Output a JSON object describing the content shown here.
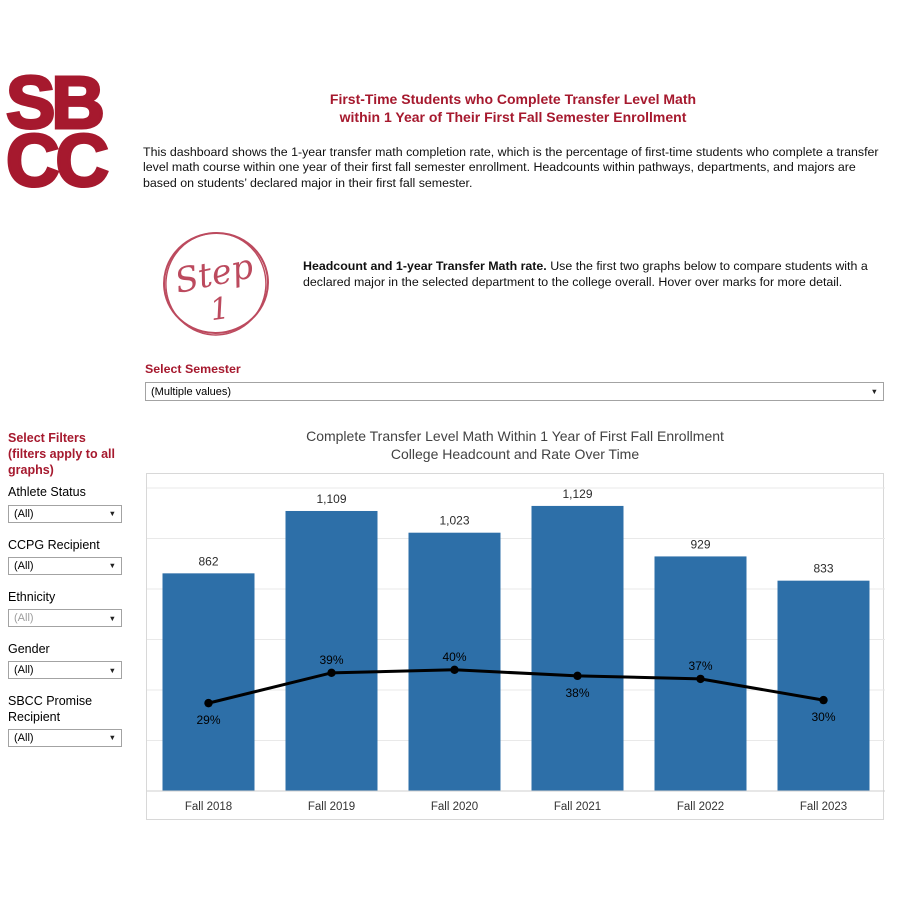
{
  "brand": {
    "logo_line1": "SB",
    "logo_line2": "CC",
    "color": "#A6192E"
  },
  "header": {
    "title_line1": "First-Time Students who Complete Transfer Level Math",
    "title_line2": "within 1 Year of Their First Fall Semester Enrollment",
    "description": "This dashboard shows the 1-year transfer math completion rate, which is the percentage of first-time students who complete a transfer level math course within one year of their first fall semester enrollment. Headcounts within pathways, departments, and majors are based on students’ declared major in their first fall semester."
  },
  "step": {
    "word": "Step",
    "number": "1",
    "heading": "Headcount and 1-year Transfer Math rate.",
    "body": "Use the first two graphs below to compare students with a declared major in the selected department to the college overall. Hover over marks for more detail.",
    "circle_color": "#bc4a5e"
  },
  "semester_filter": {
    "label": "Select Semester",
    "value": "(Multiple values)"
  },
  "sidebar": {
    "title": "Select Filters (filters apply to all graphs)",
    "filters": [
      {
        "label": "Athlete Status",
        "value": "(All)",
        "muted": false
      },
      {
        "label": "CCPG Recipient",
        "value": "(All)",
        "muted": false
      },
      {
        "label": "Ethnicity",
        "value": "(All)",
        "muted": true
      },
      {
        "label": "Gender",
        "value": "(All)",
        "muted": false
      },
      {
        "label": "SBCC Promise Recipient",
        "value": "(All)",
        "muted": false
      }
    ]
  },
  "chart_data": {
    "type": "bar",
    "title_line1": "Complete Transfer Level Math Within 1 Year of First Fall Enrollment",
    "title_line2": "College Headcount and Rate Over Time",
    "categories": [
      "Fall 2018",
      "Fall 2019",
      "Fall 2020",
      "Fall 2021",
      "Fall 2022",
      "Fall 2023"
    ],
    "series": [
      {
        "name": "College Headcount",
        "type": "bar",
        "values": [
          862,
          1109,
          1023,
          1129,
          929,
          833
        ],
        "labels": [
          "862",
          "1,109",
          "1,023",
          "1,129",
          "929",
          "833"
        ],
        "color": "#2d6fa8"
      },
      {
        "name": "1-Year Transfer Math Completion Rate",
        "type": "line",
        "values": [
          29,
          39,
          40,
          38,
          37,
          30
        ],
        "labels": [
          "29%",
          "39%",
          "40%",
          "38%",
          "37%",
          "30%"
        ],
        "label_positions": [
          "below",
          "above",
          "above",
          "below",
          "above",
          "below"
        ],
        "color": "#000000"
      }
    ],
    "bar_axis_max": 1200,
    "line_axis_max": 100,
    "gridline_step": 200,
    "grid": true,
    "legend": "none",
    "grid_color": "#e9e9e9",
    "axis_color": "#cfcfcf"
  }
}
